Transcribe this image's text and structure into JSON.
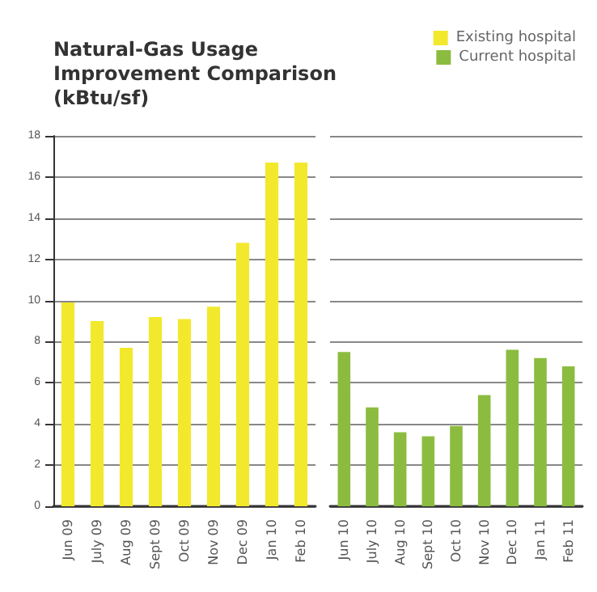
{
  "chart_data": [
    {
      "type": "bar",
      "title": "Natural-Gas Usage Improvement Comparison (kBtu/sf)",
      "categories": [
        "Jun 09",
        "July 09",
        "Aug 09",
        "Sept 09",
        "Oct 09",
        "Nov 09",
        "Dec 09",
        "Jan 10",
        "Feb 10"
      ],
      "series": [
        {
          "name": "Existing hospital",
          "color": "#f2e92c",
          "values": [
            9.9,
            9.0,
            7.7,
            9.2,
            9.1,
            9.7,
            12.8,
            16.7,
            16.7
          ]
        }
      ],
      "ylim": [
        0,
        18
      ],
      "yticks": [
        0,
        2,
        4,
        6,
        8,
        10,
        12,
        14,
        16,
        18
      ],
      "grid": "y",
      "legend": "top right"
    },
    {
      "type": "bar",
      "categories": [
        "Jun 10",
        "July 10",
        "Aug 10",
        "Sept 10",
        "Oct 10",
        "Nov 10",
        "Dec 10",
        "Jan 11",
        "Feb 11"
      ],
      "series": [
        {
          "name": "Current hospital",
          "color": "#8cbc3f",
          "values": [
            7.5,
            4.8,
            3.6,
            3.4,
            3.9,
            5.4,
            7.6,
            7.2,
            6.8
          ]
        }
      ],
      "ylim": [
        0,
        18
      ],
      "yticks": [
        0,
        2,
        4,
        6,
        8,
        10,
        12,
        14,
        16,
        18
      ],
      "grid": "y",
      "legend": "top right",
      "tick_labels": "x"
    }
  ]
}
